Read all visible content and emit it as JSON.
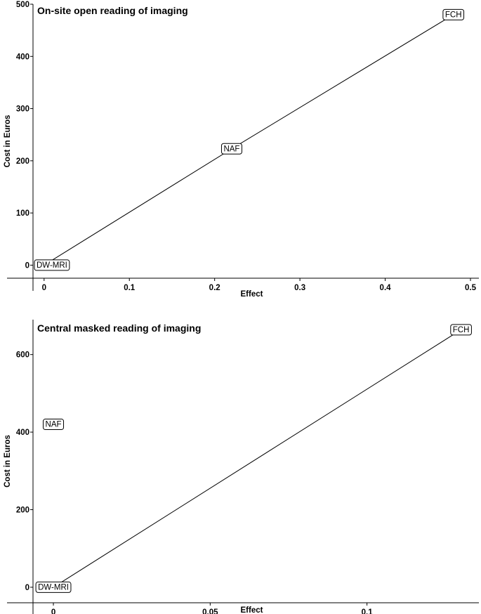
{
  "chart_data": [
    {
      "type": "line",
      "title": "On-site open reading of imaging",
      "xlabel": "Effect",
      "ylabel": "Cost in Euros",
      "xlim": [
        -0.013,
        0.5
      ],
      "ylim": [
        -25,
        500
      ],
      "xticks": [
        "0",
        "0.1",
        "0.2",
        "0.3",
        "0.4",
        "0.5"
      ],
      "yticks": [
        "0",
        "100",
        "200",
        "300",
        "400",
        "500"
      ],
      "xtick_values": [
        0,
        0.1,
        0.2,
        0.3,
        0.4,
        0.5
      ],
      "ytick_values": [
        0,
        100,
        200,
        300,
        400,
        500
      ],
      "grid": false,
      "points": [
        {
          "label": "DW-MRI",
          "x": 0,
          "y": 0
        },
        {
          "label": "NAF",
          "x": 0.22,
          "y": 223
        },
        {
          "label": "FCH",
          "x": 0.48,
          "y": 480
        }
      ],
      "frontier": [
        "DW-MRI",
        "NAF",
        "FCH"
      ]
    },
    {
      "type": "line",
      "title": "Central masked reading of imaging",
      "xlabel": "Effect",
      "ylabel": "Cost in Euros",
      "xlim": [
        -0.0065,
        0.133
      ],
      "ylim": [
        -40,
        690
      ],
      "xticks": [
        "0",
        "0.05",
        "0.1"
      ],
      "yticks": [
        "0",
        "200",
        "400",
        "600"
      ],
      "xtick_values": [
        0,
        0.05,
        0.1
      ],
      "ytick_values": [
        0,
        200,
        400,
        600
      ],
      "grid": false,
      "points": [
        {
          "label": "DW-MRI",
          "x": 0,
          "y": 0
        },
        {
          "label": "NAF",
          "x": 0,
          "y": 420
        },
        {
          "label": "FCH",
          "x": 0.13,
          "y": 664
        }
      ],
      "frontier": [
        "DW-MRI",
        "FCH"
      ]
    }
  ]
}
